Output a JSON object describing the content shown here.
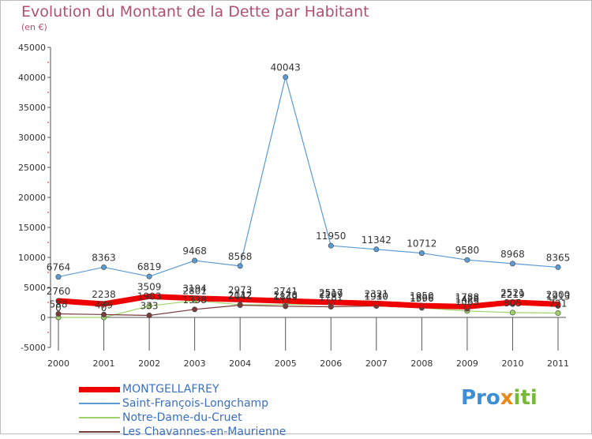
{
  "title": "Evolution du Montant de la Dette par Habitant",
  "subtitle": "(en €)",
  "logo": {
    "text": "Proxiti",
    "colors": [
      "#3b8fd6",
      "#e8891a",
      "#77b83a"
    ]
  },
  "chart_data": {
    "type": "line",
    "x": [
      "2000",
      "2001",
      "2002",
      "2003",
      "2004",
      "2005",
      "2006",
      "2007",
      "2008",
      "2009",
      "2010",
      "2011"
    ],
    "ylim": [
      -5000,
      45000
    ],
    "yticks": [
      "-5000",
      "0",
      "5000",
      "10000",
      "15000",
      "20000",
      "25000",
      "30000",
      "35000",
      "40000",
      "45000"
    ],
    "grid": false,
    "legend_position": "bottom-left",
    "series": [
      {
        "name": "Saint-François-Longchamp",
        "color": "#5a9bd4",
        "width": 1.2,
        "values": [
          6764,
          8363,
          6819,
          9468,
          8568,
          40043,
          11950,
          11342,
          10712,
          9580,
          8968,
          8365
        ],
        "labels": [
          "6764",
          "8363",
          "6819",
          "9468",
          "8568",
          "40043",
          "11950",
          "11342",
          "10712",
          "9580",
          "8968",
          "8365"
        ]
      },
      {
        "name": "Notre-Dame-du-Cruet",
        "color": "#9ed36a",
        "width": 1.2,
        "values": [
          0,
          0,
          1903,
          2801,
          2112,
          2128,
          2209,
          1930,
          1596,
          1065,
          805,
          721
        ],
        "labels": [
          "0",
          "0",
          "1903",
          "2801",
          "2112",
          "2128",
          "2209",
          "1930",
          "1596",
          "1065",
          "805",
          "721"
        ]
      },
      {
        "name": "Les Chavannes-en-Maurienne",
        "color": "#7a3b3b",
        "width": 1.2,
        "values": [
          588,
          479,
          333,
          1338,
          2042,
          1849,
          1781,
          1910,
          1666,
          1428,
          2219,
          1913
        ],
        "labels": [
          "588",
          "479",
          "333",
          "1338",
          "2042",
          "1849",
          "1781",
          "1910",
          "1666",
          "1428",
          "2219",
          "1913"
        ]
      },
      {
        "name": "MONTGELLAFREY",
        "color": "#ee0000",
        "width": 7,
        "values": [
          2760,
          2238,
          3509,
          3194,
          2973,
          2741,
          2517,
          2321,
          1950,
          1788,
          2521,
          2200
        ],
        "labels": [
          "2760",
          "2238",
          "3509",
          "3194",
          "2973",
          "2741",
          "2517",
          "2321",
          "1950",
          "1788",
          "2521",
          "2200"
        ]
      }
    ],
    "legend": [
      {
        "name": "MONTGELLAFREY",
        "color": "#ee0000",
        "thickness": 7
      },
      {
        "name": "Saint-François-Longchamp",
        "color": "#5a9bd4",
        "thickness": 2
      },
      {
        "name": "Notre-Dame-du-Cruet",
        "color": "#9ed36a",
        "thickness": 2
      },
      {
        "name": "Les Chavannes-en-Maurienne",
        "color": "#7a3b3b",
        "thickness": 2
      }
    ]
  }
}
